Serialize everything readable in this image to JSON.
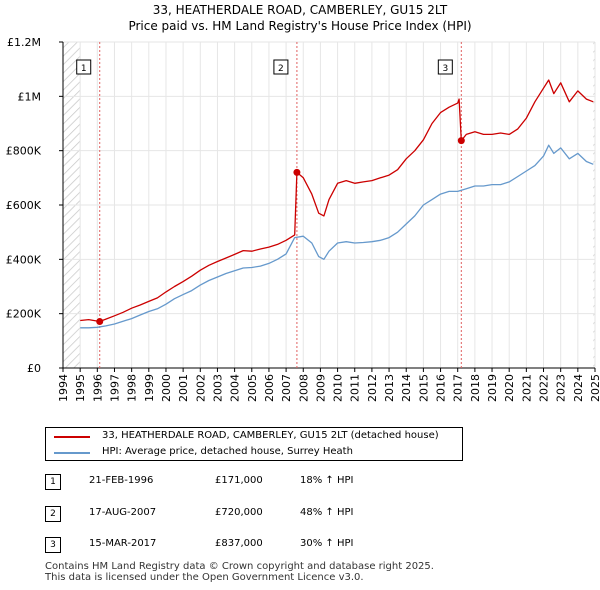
{
  "title": {
    "line1": "33, HEATHERDALE ROAD, CAMBERLEY, GU15 2LT",
    "line2": "Price paid vs. HM Land Registry's House Price Index (HPI)"
  },
  "colors": {
    "price_line": "#cc0000",
    "hpi_line": "#6699cc",
    "marker": "#cc0000",
    "vline": "#e06060",
    "hatch": "#c8c8c8",
    "grid": "#e6e6e6"
  },
  "legend": {
    "price_label": "33, HEATHERDALE ROAD, CAMBERLEY, GU15 2LT (detached house)",
    "hpi_label": "HPI: Average price, detached house, Surrey Heath"
  },
  "sales": [
    {
      "num": "1",
      "date": "21-FEB-1996",
      "price": "£171,000",
      "hpi": "18% ↑ HPI"
    },
    {
      "num": "2",
      "date": "17-AUG-2007",
      "price": "£720,000",
      "hpi": "48% ↑ HPI"
    },
    {
      "num": "3",
      "date": "15-MAR-2017",
      "price": "£837,000",
      "hpi": "30% ↑ HPI"
    }
  ],
  "footer": {
    "line1": "Contains HM Land Registry data © Crown copyright and database right 2025.",
    "line2": "This data is licensed under the Open Government Licence v3.0."
  },
  "chart_data": {
    "type": "line",
    "xlabel": "",
    "ylabel": "",
    "xlim": [
      1994,
      2025
    ],
    "ylim": [
      0,
      1200000
    ],
    "y_ticks": [
      0,
      200000,
      400000,
      600000,
      800000,
      1000000,
      1200000
    ],
    "y_tick_labels": [
      "£0",
      "£200K",
      "£400K",
      "£600K",
      "£800K",
      "£1M",
      "£1.2M"
    ],
    "x_ticks": [
      1994,
      1995,
      1996,
      1997,
      1998,
      1999,
      2000,
      2001,
      2002,
      2003,
      2004,
      2005,
      2006,
      2007,
      2008,
      2009,
      2010,
      2011,
      2012,
      2013,
      2014,
      2015,
      2016,
      2017,
      2018,
      2019,
      2020,
      2021,
      2022,
      2023,
      2024,
      2025
    ],
    "x_tick_labels": [
      "1994",
      "1995",
      "1996",
      "1997",
      "1998",
      "1999",
      "2000",
      "2001",
      "2002",
      "2003",
      "2004",
      "2005",
      "2006",
      "2007",
      "2008",
      "2009",
      "2010",
      "2011",
      "2012",
      "2013",
      "2014",
      "2015",
      "2016",
      "2017",
      "2018",
      "2019",
      "2020",
      "2021",
      "2022",
      "2023",
      "2024",
      "2025"
    ],
    "hatched_ranges": [
      [
        1994,
        1995.0
      ],
      [
        2024.9,
        2025
      ]
    ],
    "series": [
      {
        "name": "33, HEATHERDALE ROAD, CAMBERLEY, GU15 2LT (detached house)",
        "x": [
          1995.0,
          1995.5,
          1996.14,
          1996.5,
          1997,
          1997.5,
          1998,
          1998.5,
          1999,
          1999.5,
          2000,
          2000.5,
          2001,
          2001.5,
          2002,
          2002.5,
          2003,
          2003.5,
          2004,
          2004.5,
          2005,
          2005.5,
          2006,
          2006.5,
          2007,
          2007.5,
          2007.63,
          2008,
          2008.5,
          2008.9,
          2009.2,
          2009.5,
          2010,
          2010.5,
          2011,
          2011.5,
          2012,
          2012.5,
          2013,
          2013.5,
          2014,
          2014.5,
          2015,
          2015.5,
          2016,
          2016.5,
          2017.0,
          2017.08,
          2017.21,
          2017.5,
          2018,
          2018.5,
          2019,
          2019.5,
          2020,
          2020.5,
          2021,
          2021.5,
          2022,
          2022.3,
          2022.6,
          2023,
          2023.5,
          2024,
          2024.5,
          2024.9
        ],
        "values": [
          175000,
          178000,
          171000,
          180000,
          192000,
          205000,
          220000,
          232000,
          245000,
          258000,
          280000,
          300000,
          318000,
          338000,
          360000,
          378000,
          392000,
          405000,
          418000,
          432000,
          430000,
          438000,
          445000,
          455000,
          470000,
          490000,
          720000,
          700000,
          640000,
          570000,
          560000,
          620000,
          680000,
          690000,
          680000,
          685000,
          690000,
          700000,
          710000,
          730000,
          770000,
          800000,
          840000,
          900000,
          940000,
          960000,
          975000,
          990000,
          837000,
          860000,
          870000,
          860000,
          860000,
          865000,
          860000,
          880000,
          920000,
          980000,
          1030000,
          1060000,
          1010000,
          1050000,
          980000,
          1020000,
          990000,
          980000
        ]
      },
      {
        "name": "HPI: Average price, detached house, Surrey Heath",
        "x": [
          1995.0,
          1995.5,
          1996,
          1996.5,
          1997,
          1997.5,
          1998,
          1998.5,
          1999,
          1999.5,
          2000,
          2000.5,
          2001,
          2001.5,
          2002,
          2002.5,
          2003,
          2003.5,
          2004,
          2004.5,
          2005,
          2005.5,
          2006,
          2006.5,
          2007,
          2007.5,
          2008,
          2008.5,
          2008.9,
          2009.2,
          2009.5,
          2010,
          2010.5,
          2011,
          2011.5,
          2012,
          2012.5,
          2013,
          2013.5,
          2014,
          2014.5,
          2015,
          2015.5,
          2016,
          2016.5,
          2017,
          2017.5,
          2018,
          2018.5,
          2019,
          2019.5,
          2020,
          2020.5,
          2021,
          2021.5,
          2022,
          2022.3,
          2022.6,
          2023,
          2023.5,
          2024,
          2024.5,
          2024.9
        ],
        "values": [
          148000,
          148000,
          150000,
          155000,
          162000,
          172000,
          182000,
          195000,
          208000,
          218000,
          235000,
          255000,
          270000,
          285000,
          305000,
          322000,
          335000,
          348000,
          358000,
          368000,
          370000,
          375000,
          385000,
          400000,
          420000,
          480000,
          485000,
          460000,
          410000,
          400000,
          430000,
          460000,
          465000,
          460000,
          462000,
          465000,
          470000,
          480000,
          500000,
          530000,
          560000,
          600000,
          620000,
          640000,
          650000,
          650000,
          660000,
          670000,
          670000,
          675000,
          675000,
          685000,
          705000,
          725000,
          745000,
          780000,
          820000,
          790000,
          810000,
          770000,
          790000,
          760000,
          750000
        ]
      }
    ],
    "sale_points": [
      {
        "label": "1",
        "x": 1996.14,
        "y": 171000
      },
      {
        "label": "2",
        "x": 2007.63,
        "y": 720000
      },
      {
        "label": "3",
        "x": 2017.21,
        "y": 837000
      }
    ]
  }
}
